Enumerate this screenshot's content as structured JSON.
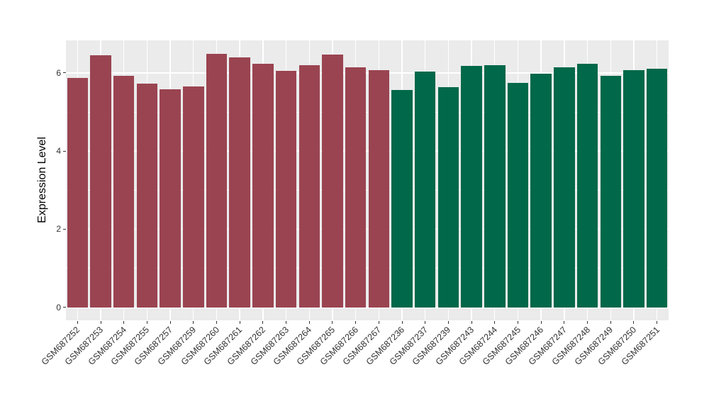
{
  "figure": {
    "background": "#FFFFFF",
    "panel_background": "#EBEBEB",
    "grid_color": "#FFFFFF",
    "tick_color": "#333333",
    "axis_text_color": "#333333",
    "axis_title_color": "#000000"
  },
  "chart_data": {
    "type": "bar",
    "title": "",
    "xlabel": "",
    "ylabel": "Expression Level",
    "ylim": [
      -0.33,
      6.83
    ],
    "yticks_major": [
      0,
      2,
      4,
      6
    ],
    "yticks_minor": [
      1,
      3,
      5
    ],
    "grid": "white major+minor horizontal lines; white vertical line per category",
    "legend_position": "none",
    "bar_width_fraction": 0.9,
    "group_colors": {
      "group1": "#9A4451",
      "group2": "#016849"
    },
    "categories": [
      "GSM687252",
      "GSM687253",
      "GSM687254",
      "GSM687255",
      "GSM687257",
      "GSM687259",
      "GSM687260",
      "GSM687261",
      "GSM687262",
      "GSM687263",
      "GSM687264",
      "GSM687265",
      "GSM687266",
      "GSM687267",
      "GSM687236",
      "GSM687237",
      "GSM687239",
      "GSM687243",
      "GSM687244",
      "GSM687245",
      "GSM687246",
      "GSM687247",
      "GSM687248",
      "GSM687249",
      "GSM687250",
      "GSM687251"
    ],
    "values": [
      5.87,
      6.45,
      5.92,
      5.72,
      5.58,
      5.66,
      6.49,
      6.39,
      6.23,
      6.05,
      6.2,
      6.46,
      6.15,
      6.06,
      5.56,
      6.04,
      5.63,
      6.17,
      6.19,
      5.75,
      5.97,
      6.14,
      6.24,
      5.93,
      6.07,
      6.1
    ],
    "groups": [
      "group1",
      "group1",
      "group1",
      "group1",
      "group1",
      "group1",
      "group1",
      "group1",
      "group1",
      "group1",
      "group1",
      "group1",
      "group1",
      "group1",
      "group2",
      "group2",
      "group2",
      "group2",
      "group2",
      "group2",
      "group2",
      "group2",
      "group2",
      "group2",
      "group2",
      "group2"
    ]
  }
}
